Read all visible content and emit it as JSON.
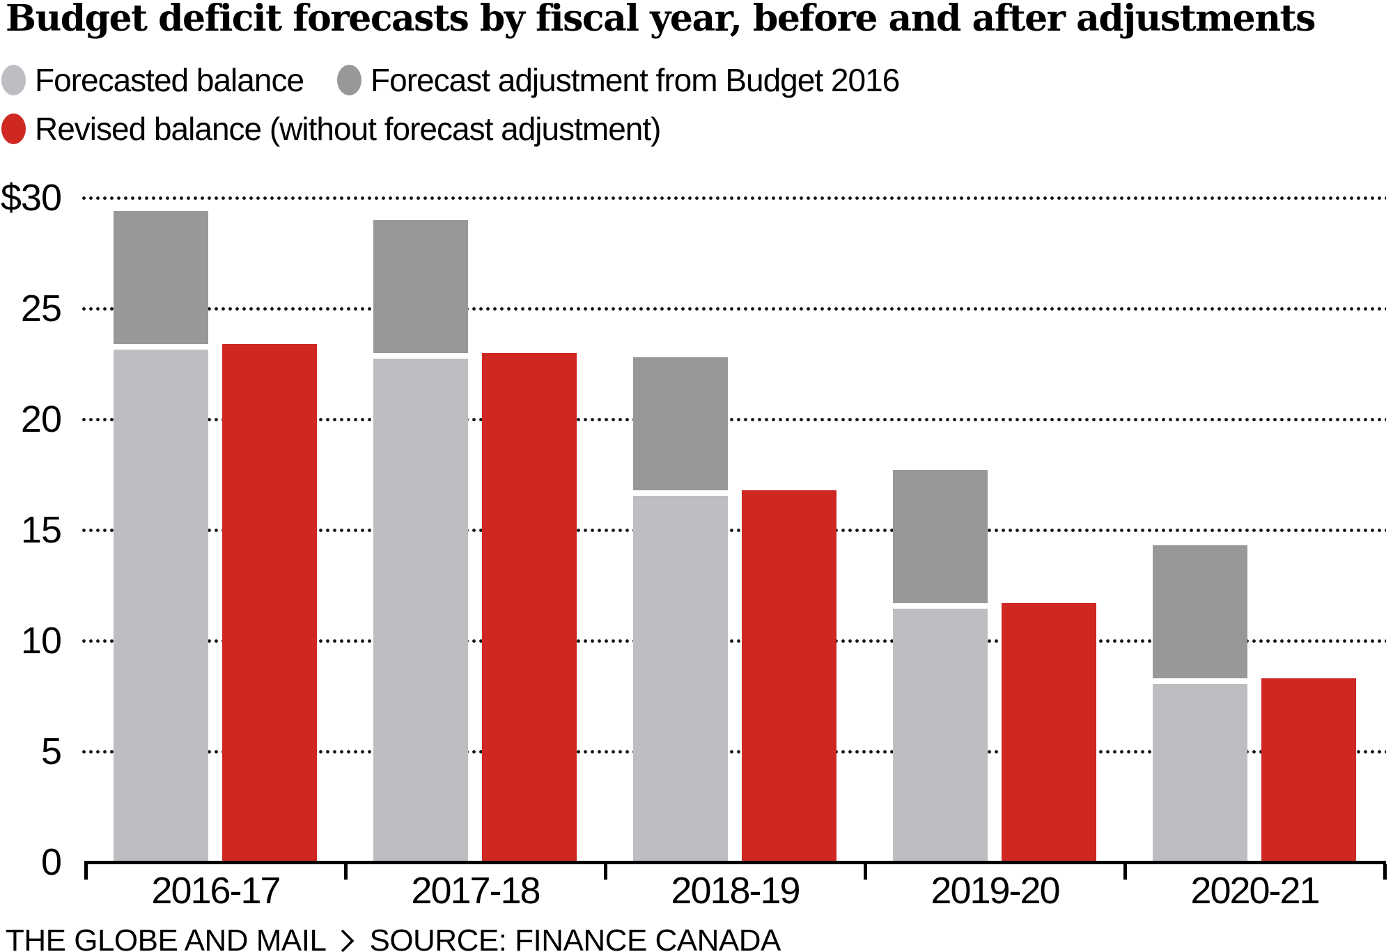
{
  "title": "Budget deficit forecasts by fiscal year, before and after adjustments",
  "legend": {
    "items": [
      {
        "label": "Forecasted balance",
        "color": "#BDBEC1"
      },
      {
        "label": "Forecast adjustment from Budget 2016",
        "color": "#97989A"
      },
      {
        "label": "Revised balance (without forecast adjustment)",
        "color": "#CF2823"
      }
    ]
  },
  "footer": {
    "brand": "THE GLOBE AND MAIL",
    "separator_icon": "chevron-right-icon",
    "source": "SOURCE: FINANCE CANADA"
  },
  "chart_data": {
    "type": "bar",
    "title": "Budget deficit forecasts by fiscal year, before and after adjustments",
    "categories": [
      "2016-17",
      "2017-18",
      "2018-19",
      "2019-20",
      "2020-21"
    ],
    "series": [
      {
        "name": "Forecasted balance",
        "role": "stack-base",
        "color": "#BDBEC1",
        "values": [
          23.4,
          23.0,
          16.8,
          11.7,
          8.3
        ]
      },
      {
        "name": "Forecast adjustment from Budget 2016",
        "role": "stack-top",
        "color": "#97989A",
        "values": [
          6.0,
          6.0,
          6.0,
          6.0,
          6.0
        ]
      },
      {
        "name": "Revised balance (without forecast adjustment)",
        "role": "grouped-bar",
        "color": "#CF2823",
        "values": [
          23.4,
          23.0,
          16.8,
          11.7,
          8.3
        ]
      }
    ],
    "stack_totals": [
      29.4,
      29.0,
      22.8,
      17.7,
      14.3
    ],
    "xlabel": "",
    "ylabel": "",
    "y_ticks": [
      30,
      25,
      20,
      15,
      10,
      5,
      0
    ],
    "y_tick_labels": [
      "$30",
      "25",
      "20",
      "15",
      "10",
      "5",
      "0"
    ],
    "ylim": [
      0,
      30
    ],
    "grid": "dotted-horizontal",
    "grid_color": "#151515",
    "axis_color": "#000000",
    "legend_position": "top"
  }
}
